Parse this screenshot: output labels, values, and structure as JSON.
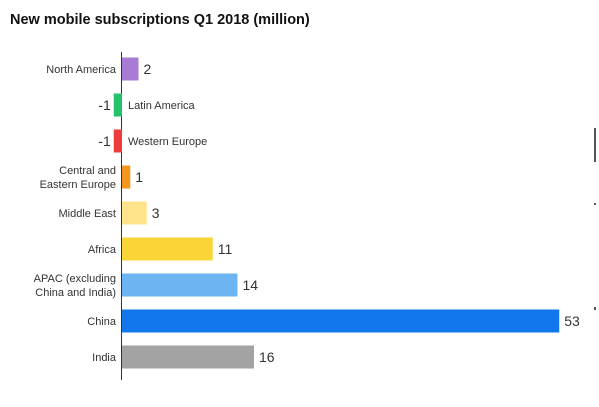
{
  "chart_data": {
    "type": "bar",
    "orientation": "horizontal",
    "title": "New mobile subscriptions Q1 2018 (million)",
    "xlabel": "",
    "ylabel": "",
    "grid": false,
    "categories": [
      [
        "North America"
      ],
      [
        "Latin America"
      ],
      [
        "Western Europe"
      ],
      [
        "Central and",
        "Eastern Europe"
      ],
      [
        "Middle East"
      ],
      [
        "Africa"
      ],
      [
        "APAC (excluding",
        "China and India)"
      ],
      [
        "China"
      ],
      [
        "India"
      ]
    ],
    "values": [
      2,
      -1,
      -1,
      1,
      3,
      11,
      14,
      53,
      16
    ],
    "colors": [
      "#A87BD6",
      "#25C26E",
      "#EE3B3B",
      "#F5961E",
      "#FFE38A",
      "#F9D537",
      "#6CB4F2",
      "#1277EA",
      "#A3A3A3"
    ]
  }
}
